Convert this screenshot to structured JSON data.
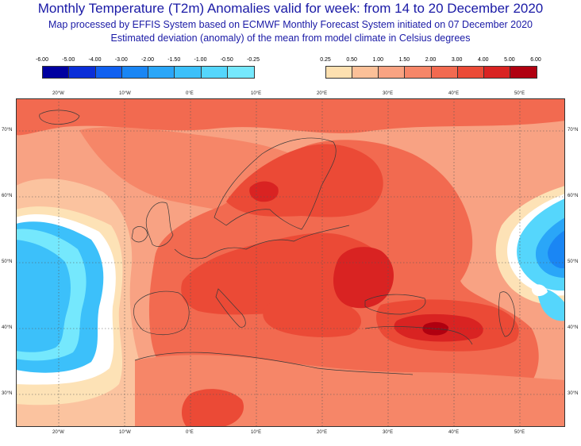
{
  "header": {
    "title": "Monthly Temperature (T2m) Anomalies valid for week: from 14 to 20 December 2020",
    "subtitle_1": "Map processed by EFFIS System based on ECMWF Monthly Forecast System initiated on 07 December 2020",
    "subtitle_2": "Estimated deviation (anomaly) of the mean from model climate in Celsius degrees"
  },
  "legend_cold": {
    "labels": [
      "-6.00",
      "-5.00",
      "-4.00",
      "-3.00",
      "-2.00",
      "-1.50",
      "-1.00",
      "-0.50",
      "-0.25"
    ],
    "colors": [
      "#0000a0",
      "#0a2ed8",
      "#1060f0",
      "#1a86f4",
      "#2aa6f8",
      "#3cc0fa",
      "#55d6fc",
      "#75e8fd"
    ]
  },
  "legend_warm": {
    "labels": [
      "0.25",
      "0.50",
      "1.00",
      "1.50",
      "2.00",
      "3.00",
      "4.00",
      "5.00",
      "6.00"
    ],
    "colors": [
      "#fde0b0",
      "#fbc098",
      "#f9a382",
      "#f68668",
      "#f26a50",
      "#eb4a36",
      "#d92322",
      "#b00010"
    ]
  },
  "map": {
    "lon_labels": [
      "20°W",
      "10°W",
      "0°E",
      "10°E",
      "20°E",
      "30°E",
      "40°E",
      "50°E"
    ],
    "lat_labels": [
      "70°N",
      "60°N",
      "50°N",
      "40°N",
      "30°N"
    ]
  }
}
